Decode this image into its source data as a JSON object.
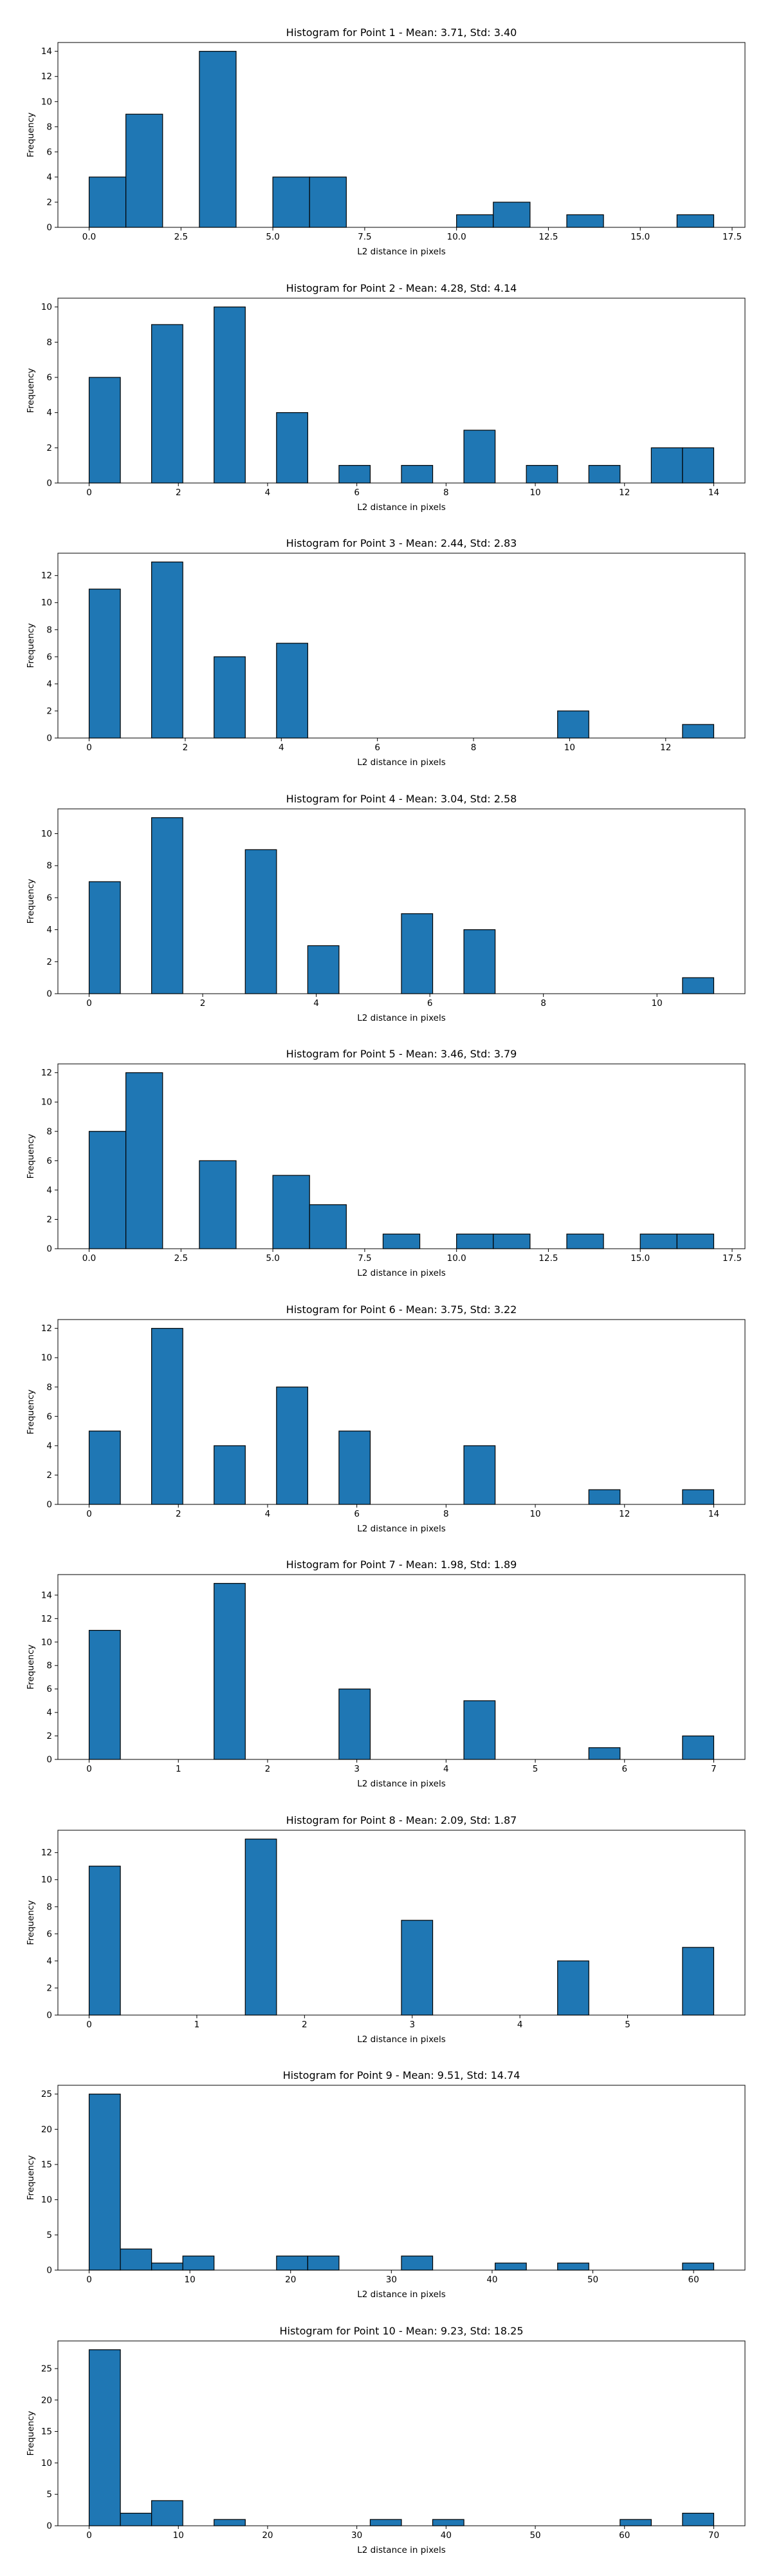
{
  "chart_data": [
    {
      "type": "bar",
      "title": "Histogram for Point 1 - Mean: 3.71, Std: 3.40",
      "xlabel": "L2 distance in pixels",
      "ylabel": "Frequency",
      "xlim": [
        -0.85,
        17.85
      ],
      "ylim": [
        0,
        14.7
      ],
      "xticks": [
        0.0,
        2.5,
        5.0,
        7.5,
        10.0,
        12.5,
        15.0,
        17.5
      ],
      "xtick_labels": [
        "0.0",
        "2.5",
        "5.0",
        "7.5",
        "10.0",
        "12.5",
        "15.0",
        "17.5"
      ],
      "yticks": [
        0,
        2,
        4,
        6,
        8,
        10,
        12,
        14
      ],
      "bins": [
        {
          "x0": 0.0,
          "x1": 1.0,
          "value": 4
        },
        {
          "x0": 1.0,
          "x1": 2.0,
          "value": 9
        },
        {
          "x0": 3.0,
          "x1": 4.0,
          "value": 14
        },
        {
          "x0": 5.0,
          "x1": 6.0,
          "value": 4
        },
        {
          "x0": 6.0,
          "x1": 7.0,
          "value": 4
        },
        {
          "x0": 10.0,
          "x1": 11.0,
          "value": 1
        },
        {
          "x0": 11.0,
          "x1": 12.0,
          "value": 2
        },
        {
          "x0": 13.0,
          "x1": 14.0,
          "value": 1
        },
        {
          "x0": 16.0,
          "x1": 17.0,
          "value": 1
        }
      ]
    },
    {
      "type": "bar",
      "title": "Histogram for Point 2 - Mean: 4.28, Std: 4.14",
      "xlabel": "L2 distance in pixels",
      "ylabel": "Frequency",
      "xlim": [
        -0.7,
        14.7
      ],
      "ylim": [
        0,
        10.5
      ],
      "xticks": [
        0,
        2,
        4,
        6,
        8,
        10,
        12,
        14
      ],
      "xtick_labels": [
        "0",
        "2",
        "4",
        "6",
        "8",
        "10",
        "12",
        "14"
      ],
      "yticks": [
        0,
        2,
        4,
        6,
        8,
        10
      ],
      "bins": [
        {
          "x0": 0.0,
          "x1": 0.7,
          "value": 6
        },
        {
          "x0": 1.4,
          "x1": 2.1,
          "value": 9
        },
        {
          "x0": 2.8,
          "x1": 3.5,
          "value": 10
        },
        {
          "x0": 4.2,
          "x1": 4.9,
          "value": 4
        },
        {
          "x0": 5.6,
          "x1": 6.3,
          "value": 1
        },
        {
          "x0": 7.0,
          "x1": 7.7,
          "value": 1
        },
        {
          "x0": 8.4,
          "x1": 9.1,
          "value": 3
        },
        {
          "x0": 9.8,
          "x1": 10.5,
          "value": 1
        },
        {
          "x0": 11.2,
          "x1": 11.9,
          "value": 1
        },
        {
          "x0": 12.6,
          "x1": 13.3,
          "value": 2
        },
        {
          "x0": 13.3,
          "x1": 14.0,
          "value": 2
        }
      ]
    },
    {
      "type": "bar",
      "title": "Histogram for Point 3 - Mean: 2.44, Std: 2.83",
      "xlabel": "L2 distance in pixels",
      "ylabel": "Frequency",
      "xlim": [
        -0.65,
        13.65
      ],
      "ylim": [
        0,
        13.65
      ],
      "xticks": [
        0,
        2,
        4,
        6,
        8,
        10,
        12
      ],
      "xtick_labels": [
        "0",
        "2",
        "4",
        "6",
        "8",
        "10",
        "12"
      ],
      "yticks": [
        0,
        2,
        4,
        6,
        8,
        10,
        12
      ],
      "bins": [
        {
          "x0": 0.0,
          "x1": 0.65,
          "value": 11
        },
        {
          "x0": 1.3,
          "x1": 1.95,
          "value": 13
        },
        {
          "x0": 2.6,
          "x1": 3.25,
          "value": 6
        },
        {
          "x0": 3.9,
          "x1": 4.55,
          "value": 7
        },
        {
          "x0": 9.75,
          "x1": 10.4,
          "value": 2
        },
        {
          "x0": 12.35,
          "x1": 13.0,
          "value": 1
        }
      ]
    },
    {
      "type": "bar",
      "title": "Histogram for Point 4 - Mean: 3.04, Std: 2.58",
      "xlabel": "L2 distance in pixels",
      "ylabel": "Frequency",
      "xlim": [
        -0.55,
        11.55
      ],
      "ylim": [
        0,
        11.55
      ],
      "xticks": [
        0,
        2,
        4,
        6,
        8,
        10
      ],
      "xtick_labels": [
        "0",
        "2",
        "4",
        "6",
        "8",
        "10"
      ],
      "yticks": [
        0,
        2,
        4,
        6,
        8,
        10
      ],
      "bins": [
        {
          "x0": 0.0,
          "x1": 0.55,
          "value": 7
        },
        {
          "x0": 1.1,
          "x1": 1.65,
          "value": 11
        },
        {
          "x0": 2.75,
          "x1": 3.3,
          "value": 9
        },
        {
          "x0": 3.85,
          "x1": 4.4,
          "value": 3
        },
        {
          "x0": 5.5,
          "x1": 6.05,
          "value": 5
        },
        {
          "x0": 6.6,
          "x1": 7.15,
          "value": 4
        },
        {
          "x0": 10.45,
          "x1": 11.0,
          "value": 1
        }
      ]
    },
    {
      "type": "bar",
      "title": "Histogram for Point 5 - Mean: 3.46, Std: 3.79",
      "xlabel": "L2 distance in pixels",
      "ylabel": "Frequency",
      "xlim": [
        -0.85,
        17.85
      ],
      "ylim": [
        0,
        12.6
      ],
      "xticks": [
        0.0,
        2.5,
        5.0,
        7.5,
        10.0,
        12.5,
        15.0,
        17.5
      ],
      "xtick_labels": [
        "0.0",
        "2.5",
        "5.0",
        "7.5",
        "10.0",
        "12.5",
        "15.0",
        "17.5"
      ],
      "yticks": [
        0,
        2,
        4,
        6,
        8,
        10,
        12
      ],
      "bins": [
        {
          "x0": 0.0,
          "x1": 1.0,
          "value": 8
        },
        {
          "x0": 1.0,
          "x1": 2.0,
          "value": 12
        },
        {
          "x0": 3.0,
          "x1": 4.0,
          "value": 6
        },
        {
          "x0": 5.0,
          "x1": 6.0,
          "value": 5
        },
        {
          "x0": 6.0,
          "x1": 7.0,
          "value": 3
        },
        {
          "x0": 8.0,
          "x1": 9.0,
          "value": 1
        },
        {
          "x0": 10.0,
          "x1": 11.0,
          "value": 1
        },
        {
          "x0": 11.0,
          "x1": 12.0,
          "value": 1
        },
        {
          "x0": 13.0,
          "x1": 14.0,
          "value": 1
        },
        {
          "x0": 15.0,
          "x1": 16.0,
          "value": 1
        },
        {
          "x0": 16.0,
          "x1": 17.0,
          "value": 1
        }
      ]
    },
    {
      "type": "bar",
      "title": "Histogram for Point 6 - Mean: 3.75, Std: 3.22",
      "xlabel": "L2 distance in pixels",
      "ylabel": "Frequency",
      "xlim": [
        -0.7,
        14.7
      ],
      "ylim": [
        0,
        12.6
      ],
      "xticks": [
        0,
        2,
        4,
        6,
        8,
        10,
        12,
        14
      ],
      "xtick_labels": [
        "0",
        "2",
        "4",
        "6",
        "8",
        "10",
        "12",
        "14"
      ],
      "yticks": [
        0,
        2,
        4,
        6,
        8,
        10,
        12
      ],
      "bins": [
        {
          "x0": 0.0,
          "x1": 0.7,
          "value": 5
        },
        {
          "x0": 1.4,
          "x1": 2.1,
          "value": 12
        },
        {
          "x0": 2.8,
          "x1": 3.5,
          "value": 4
        },
        {
          "x0": 4.2,
          "x1": 4.9,
          "value": 8
        },
        {
          "x0": 5.6,
          "x1": 6.3,
          "value": 5
        },
        {
          "x0": 8.4,
          "x1": 9.1,
          "value": 4
        },
        {
          "x0": 11.2,
          "x1": 11.9,
          "value": 1
        },
        {
          "x0": 13.3,
          "x1": 14.0,
          "value": 1
        }
      ]
    },
    {
      "type": "bar",
      "title": "Histogram for Point 7 - Mean: 1.98, Std: 1.89",
      "xlabel": "L2 distance in pixels",
      "ylabel": "Frequency",
      "xlim": [
        -0.35,
        7.35
      ],
      "ylim": [
        0,
        15.75
      ],
      "xticks": [
        0,
        1,
        2,
        3,
        4,
        5,
        6,
        7
      ],
      "xtick_labels": [
        "0",
        "1",
        "2",
        "3",
        "4",
        "5",
        "6",
        "7"
      ],
      "yticks": [
        0,
        2,
        4,
        6,
        8,
        10,
        12,
        14
      ],
      "bins": [
        {
          "x0": 0.0,
          "x1": 0.35,
          "value": 11
        },
        {
          "x0": 1.4,
          "x1": 1.75,
          "value": 15
        },
        {
          "x0": 2.8,
          "x1": 3.15,
          "value": 6
        },
        {
          "x0": 4.2,
          "x1": 4.55,
          "value": 5
        },
        {
          "x0": 5.6,
          "x1": 5.95,
          "value": 1
        },
        {
          "x0": 6.65,
          "x1": 7.0,
          "value": 2
        }
      ]
    },
    {
      "type": "bar",
      "title": "Histogram for Point 8 - Mean: 2.09, Std: 1.87",
      "xlabel": "L2 distance in pixels",
      "ylabel": "Frequency",
      "xlim": [
        -0.29,
        6.09
      ],
      "ylim": [
        0,
        13.65
      ],
      "xticks": [
        0,
        1,
        2,
        3,
        4,
        5
      ],
      "xtick_labels": [
        "0",
        "1",
        "2",
        "3",
        "4",
        "5"
      ],
      "yticks": [
        0,
        2,
        4,
        6,
        8,
        10,
        12
      ],
      "bins": [
        {
          "x0": 0.0,
          "x1": 0.29,
          "value": 11
        },
        {
          "x0": 1.45,
          "x1": 1.74,
          "value": 13
        },
        {
          "x0": 2.9,
          "x1": 3.19,
          "value": 7
        },
        {
          "x0": 4.35,
          "x1": 4.64,
          "value": 4
        },
        {
          "x0": 5.51,
          "x1": 5.8,
          "value": 5
        }
      ]
    },
    {
      "type": "bar",
      "title": "Histogram for Point 9 - Mean: 9.51, Std: 14.74",
      "xlabel": "L2 distance in pixels",
      "ylabel": "Frequency",
      "xlim": [
        -3.1,
        65.1
      ],
      "ylim": [
        0,
        26.25
      ],
      "xticks": [
        0,
        10,
        20,
        30,
        40,
        50,
        60
      ],
      "xtick_labels": [
        "0",
        "10",
        "20",
        "30",
        "40",
        "50",
        "60"
      ],
      "yticks": [
        0,
        5,
        10,
        15,
        20,
        25
      ],
      "bins": [
        {
          "x0": 0.0,
          "x1": 3.1,
          "value": 25
        },
        {
          "x0": 3.1,
          "x1": 6.2,
          "value": 3
        },
        {
          "x0": 6.2,
          "x1": 9.3,
          "value": 1
        },
        {
          "x0": 9.3,
          "x1": 12.4,
          "value": 2
        },
        {
          "x0": 18.6,
          "x1": 21.7,
          "value": 2
        },
        {
          "x0": 21.7,
          "x1": 24.8,
          "value": 2
        },
        {
          "x0": 31.0,
          "x1": 34.1,
          "value": 2
        },
        {
          "x0": 40.3,
          "x1": 43.4,
          "value": 1
        },
        {
          "x0": 46.5,
          "x1": 49.6,
          "value": 1
        },
        {
          "x0": 58.9,
          "x1": 62.0,
          "value": 1
        }
      ]
    },
    {
      "type": "bar",
      "title": "Histogram for Point 10 - Mean: 9.23, Std: 18.25",
      "xlabel": "L2 distance in pixels",
      "ylabel": "Frequency",
      "xlim": [
        -3.5,
        73.5
      ],
      "ylim": [
        0,
        29.4
      ],
      "xticks": [
        0,
        10,
        20,
        30,
        40,
        50,
        60,
        70
      ],
      "xtick_labels": [
        "0",
        "10",
        "20",
        "30",
        "40",
        "50",
        "60",
        "70"
      ],
      "yticks": [
        0,
        5,
        10,
        15,
        20,
        25
      ],
      "bins": [
        {
          "x0": 0.0,
          "x1": 3.5,
          "value": 28
        },
        {
          "x0": 3.5,
          "x1": 7.0,
          "value": 2
        },
        {
          "x0": 7.0,
          "x1": 10.5,
          "value": 4
        },
        {
          "x0": 14.0,
          "x1": 17.5,
          "value": 1
        },
        {
          "x0": 31.5,
          "x1": 35.0,
          "value": 1
        },
        {
          "x0": 38.5,
          "x1": 42.0,
          "value": 1
        },
        {
          "x0": 59.5,
          "x1": 63.0,
          "value": 1
        },
        {
          "x0": 66.5,
          "x1": 70.0,
          "value": 2
        }
      ]
    }
  ],
  "style": {
    "bar_color": "#1f77b4",
    "edge_color": "#000000",
    "axis_color": "#000000",
    "text_color": "#000000",
    "background": "#ffffff"
  }
}
